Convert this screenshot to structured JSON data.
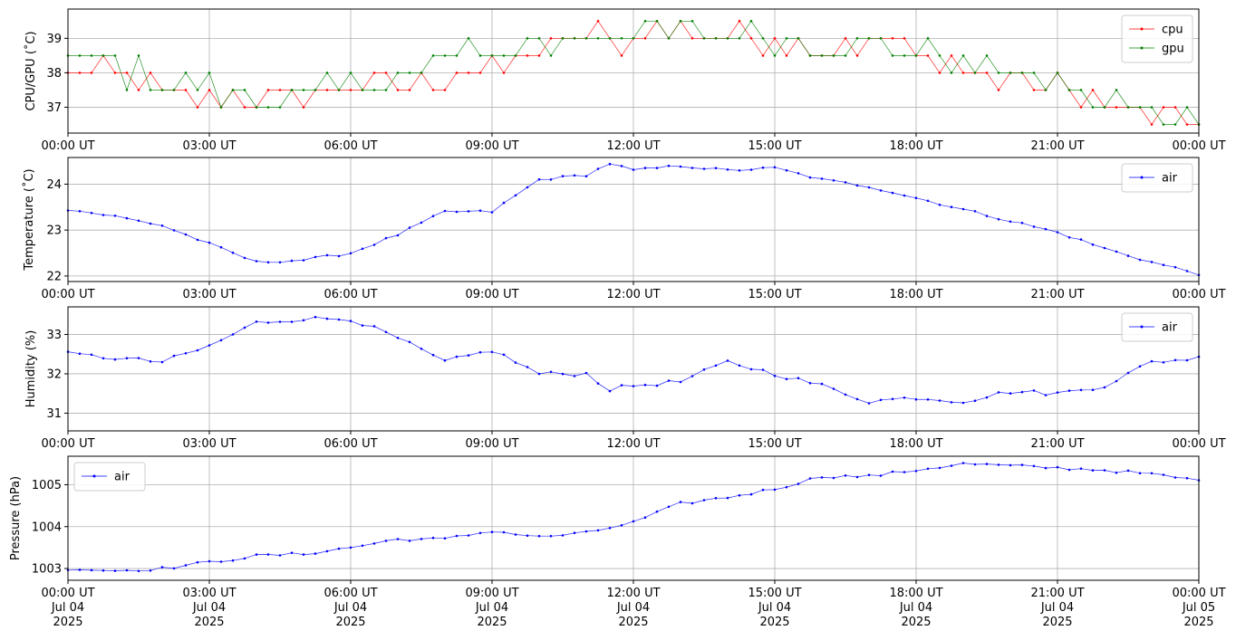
{
  "chart_data": [
    {
      "type": "line",
      "ylabel": "CPU/GPU (˚C)",
      "ylim": [
        36.25,
        39.85
      ],
      "yticks": [
        37,
        38,
        39
      ],
      "x_ticks": [
        "00:00 UT",
        "03:00 UT",
        "06:00 UT",
        "09:00 UT",
        "12:00 UT",
        "15:00 UT",
        "18:00 UT",
        "21:00 UT",
        "00:00 UT"
      ],
      "grid": true,
      "legend_position": "upper-right",
      "series": [
        {
          "name": "cpu",
          "color": "#ff0000",
          "quantized": 0.5,
          "noise": 0.45,
          "points": [
            [
              0,
              38.0
            ],
            [
              1,
              37.8
            ],
            [
              2,
              37.5
            ],
            [
              3,
              37.3
            ],
            [
              4,
              37.2
            ],
            [
              5,
              37.3
            ],
            [
              6,
              37.5
            ],
            [
              7,
              37.6
            ],
            [
              8,
              37.9
            ],
            [
              9,
              38.1
            ],
            [
              10,
              38.8
            ],
            [
              11,
              39.0
            ],
            [
              12,
              39.1
            ],
            [
              13,
              39.2
            ],
            [
              14,
              39.1
            ],
            [
              15,
              39.0
            ],
            [
              16,
              38.9
            ],
            [
              17,
              38.9
            ],
            [
              18,
              38.6
            ],
            [
              19,
              38.1
            ],
            [
              20,
              37.8
            ],
            [
              21,
              37.5
            ],
            [
              22,
              37.0
            ],
            [
              23,
              36.8
            ],
            [
              24,
              36.7
            ]
          ]
        },
        {
          "name": "gpu",
          "color": "#008000",
          "quantized": 0.5,
          "noise": 0.4,
          "points": [
            [
              0,
              38.4
            ],
            [
              1,
              38.2
            ],
            [
              2,
              37.7
            ],
            [
              3,
              37.5
            ],
            [
              4,
              37.3
            ],
            [
              5,
              37.4
            ],
            [
              6,
              37.6
            ],
            [
              7,
              37.8
            ],
            [
              8,
              38.4
            ],
            [
              9,
              38.6
            ],
            [
              10,
              38.8
            ],
            [
              11,
              39.0
            ],
            [
              12,
              39.1
            ],
            [
              13,
              39.2
            ],
            [
              14,
              39.2
            ],
            [
              15,
              39.1
            ],
            [
              16,
              38.9
            ],
            [
              17,
              38.8
            ],
            [
              18,
              38.6
            ],
            [
              19,
              38.4
            ],
            [
              20,
              38.0
            ],
            [
              21,
              37.7
            ],
            [
              22,
              37.2
            ],
            [
              23,
              36.9
            ],
            [
              24,
              36.8
            ]
          ]
        }
      ]
    },
    {
      "type": "line",
      "ylabel": "Temperature (˚C)",
      "ylim": [
        21.88,
        24.58
      ],
      "yticks": [
        22,
        23,
        24
      ],
      "x_ticks": [
        "00:00 UT",
        "03:00 UT",
        "06:00 UT",
        "09:00 UT",
        "12:00 UT",
        "15:00 UT",
        "18:00 UT",
        "21:00 UT",
        "00:00 UT"
      ],
      "grid": true,
      "legend_position": "upper-right",
      "series": [
        {
          "name": "air",
          "color": "#0000ff",
          "noise": 0.03,
          "points": [
            [
              0,
              23.45
            ],
            [
              1,
              23.3
            ],
            [
              2,
              23.1
            ],
            [
              3,
              22.7
            ],
            [
              4,
              22.3
            ],
            [
              5,
              22.35
            ],
            [
              6,
              22.5
            ],
            [
              7,
              22.9
            ],
            [
              8,
              23.4
            ],
            [
              9,
              23.4
            ],
            [
              10,
              24.1
            ],
            [
              11,
              24.2
            ],
            [
              11.5,
              24.45
            ],
            [
              12,
              24.3
            ],
            [
              13,
              24.4
            ],
            [
              14,
              24.3
            ],
            [
              15,
              24.35
            ],
            [
              16,
              24.1
            ],
            [
              17,
              23.95
            ],
            [
              18,
              23.7
            ],
            [
              19,
              23.45
            ],
            [
              20,
              23.2
            ],
            [
              21,
              22.95
            ],
            [
              22,
              22.6
            ],
            [
              23,
              22.3
            ],
            [
              24,
              22.05
            ]
          ]
        }
      ]
    },
    {
      "type": "line",
      "ylabel": "Humidity (%)",
      "ylim": [
        30.55,
        33.7
      ],
      "yticks": [
        31,
        32,
        33
      ],
      "x_ticks": [
        "00:00 UT",
        "03:00 UT",
        "06:00 UT",
        "09:00 UT",
        "12:00 UT",
        "15:00 UT",
        "18:00 UT",
        "21:00 UT",
        "00:00 UT"
      ],
      "grid": true,
      "legend_position": "upper-right",
      "series": [
        {
          "name": "air",
          "color": "#0000ff",
          "noise": 0.06,
          "points": [
            [
              0,
              32.5
            ],
            [
              1,
              32.4
            ],
            [
              2,
              32.3
            ],
            [
              3,
              32.7
            ],
            [
              4,
              33.3
            ],
            [
              5,
              33.4
            ],
            [
              6,
              33.4
            ],
            [
              7,
              32.9
            ],
            [
              8,
              32.3
            ],
            [
              9,
              32.6
            ],
            [
              10,
              32.0
            ],
            [
              11,
              32.0
            ],
            [
              11.5,
              31.6
            ],
            [
              12,
              31.7
            ],
            [
              13,
              31.8
            ],
            [
              14,
              32.3
            ],
            [
              15,
              32.0
            ],
            [
              16,
              31.7
            ],
            [
              17,
              31.3
            ],
            [
              18,
              31.4
            ],
            [
              19,
              31.3
            ],
            [
              20,
              31.55
            ],
            [
              21,
              31.5
            ],
            [
              22,
              31.7
            ],
            [
              23,
              32.3
            ],
            [
              24,
              32.4
            ]
          ]
        }
      ]
    },
    {
      "type": "line",
      "ylabel": "Pressure (hPa)",
      "ylim": [
        1002.72,
        1005.68
      ],
      "yticks": [
        1003,
        1004,
        1005
      ],
      "x_ticks": [
        "00:00 UT\nJul 04\n2025",
        "03:00 UT\nJul 04\n2025",
        "06:00 UT\nJul 04\n2025",
        "09:00 UT\nJul 04\n2025",
        "12:00 UT\nJul 04\n2025",
        "15:00 UT\nJul 04\n2025",
        "18:00 UT\nJul 04\n2025",
        "21:00 UT\nJul 04\n2025",
        "00:00 UT\nJul 05\n2025"
      ],
      "grid": true,
      "legend_position": "upper-left",
      "series": [
        {
          "name": "air",
          "color": "#0000ff",
          "noise": 0.04,
          "points": [
            [
              0,
              1003.0
            ],
            [
              1,
              1002.95
            ],
            [
              2,
              1003.0
            ],
            [
              3,
              1003.15
            ],
            [
              4,
              1003.3
            ],
            [
              5,
              1003.35
            ],
            [
              6,
              1003.5
            ],
            [
              7,
              1003.7
            ],
            [
              8,
              1003.7
            ],
            [
              9,
              1003.9
            ],
            [
              10,
              1003.75
            ],
            [
              11,
              1003.85
            ],
            [
              12,
              1004.1
            ],
            [
              13,
              1004.55
            ],
            [
              14,
              1004.7
            ],
            [
              15,
              1004.9
            ],
            [
              16,
              1005.2
            ],
            [
              17,
              1005.2
            ],
            [
              18,
              1005.35
            ],
            [
              19,
              1005.5
            ],
            [
              20,
              1005.45
            ],
            [
              21,
              1005.4
            ],
            [
              22,
              1005.35
            ],
            [
              23,
              1005.25
            ],
            [
              24,
              1005.1
            ]
          ]
        }
      ]
    }
  ]
}
